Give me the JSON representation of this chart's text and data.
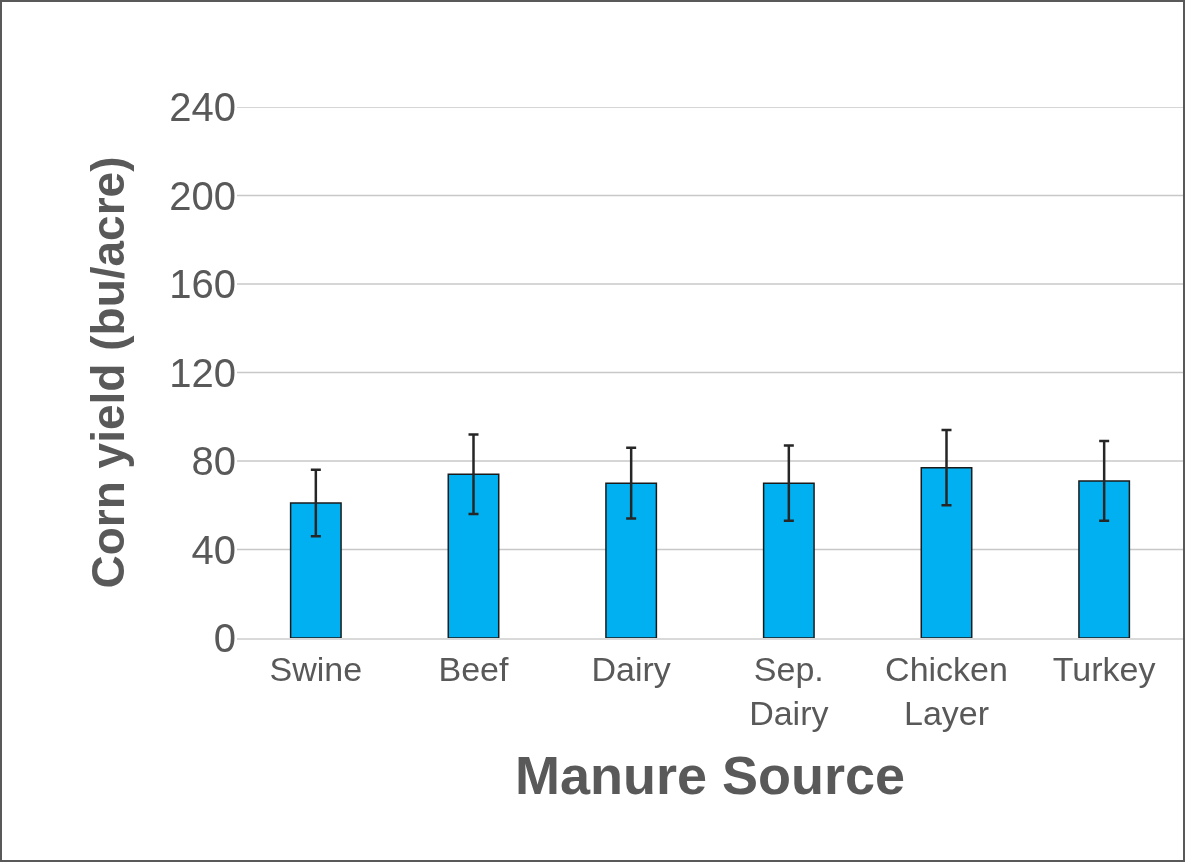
{
  "chart_data": {
    "type": "bar",
    "xlabel": "Manure Source",
    "ylabel": "Corn yield (bu/acre)",
    "categories": [
      "Swine",
      "Beef",
      "Dairy",
      "Sep. Dairy",
      "Chicken Layer",
      "Turkey"
    ],
    "values": [
      61,
      74,
      70,
      70,
      77,
      71
    ],
    "errors": [
      15,
      18,
      16,
      17,
      17,
      18
    ],
    "color": "#00b0f0",
    "ylim": [
      0,
      240
    ],
    "yticks": [
      0,
      40,
      80,
      120,
      160,
      200,
      240
    ],
    "grid": "y"
  }
}
